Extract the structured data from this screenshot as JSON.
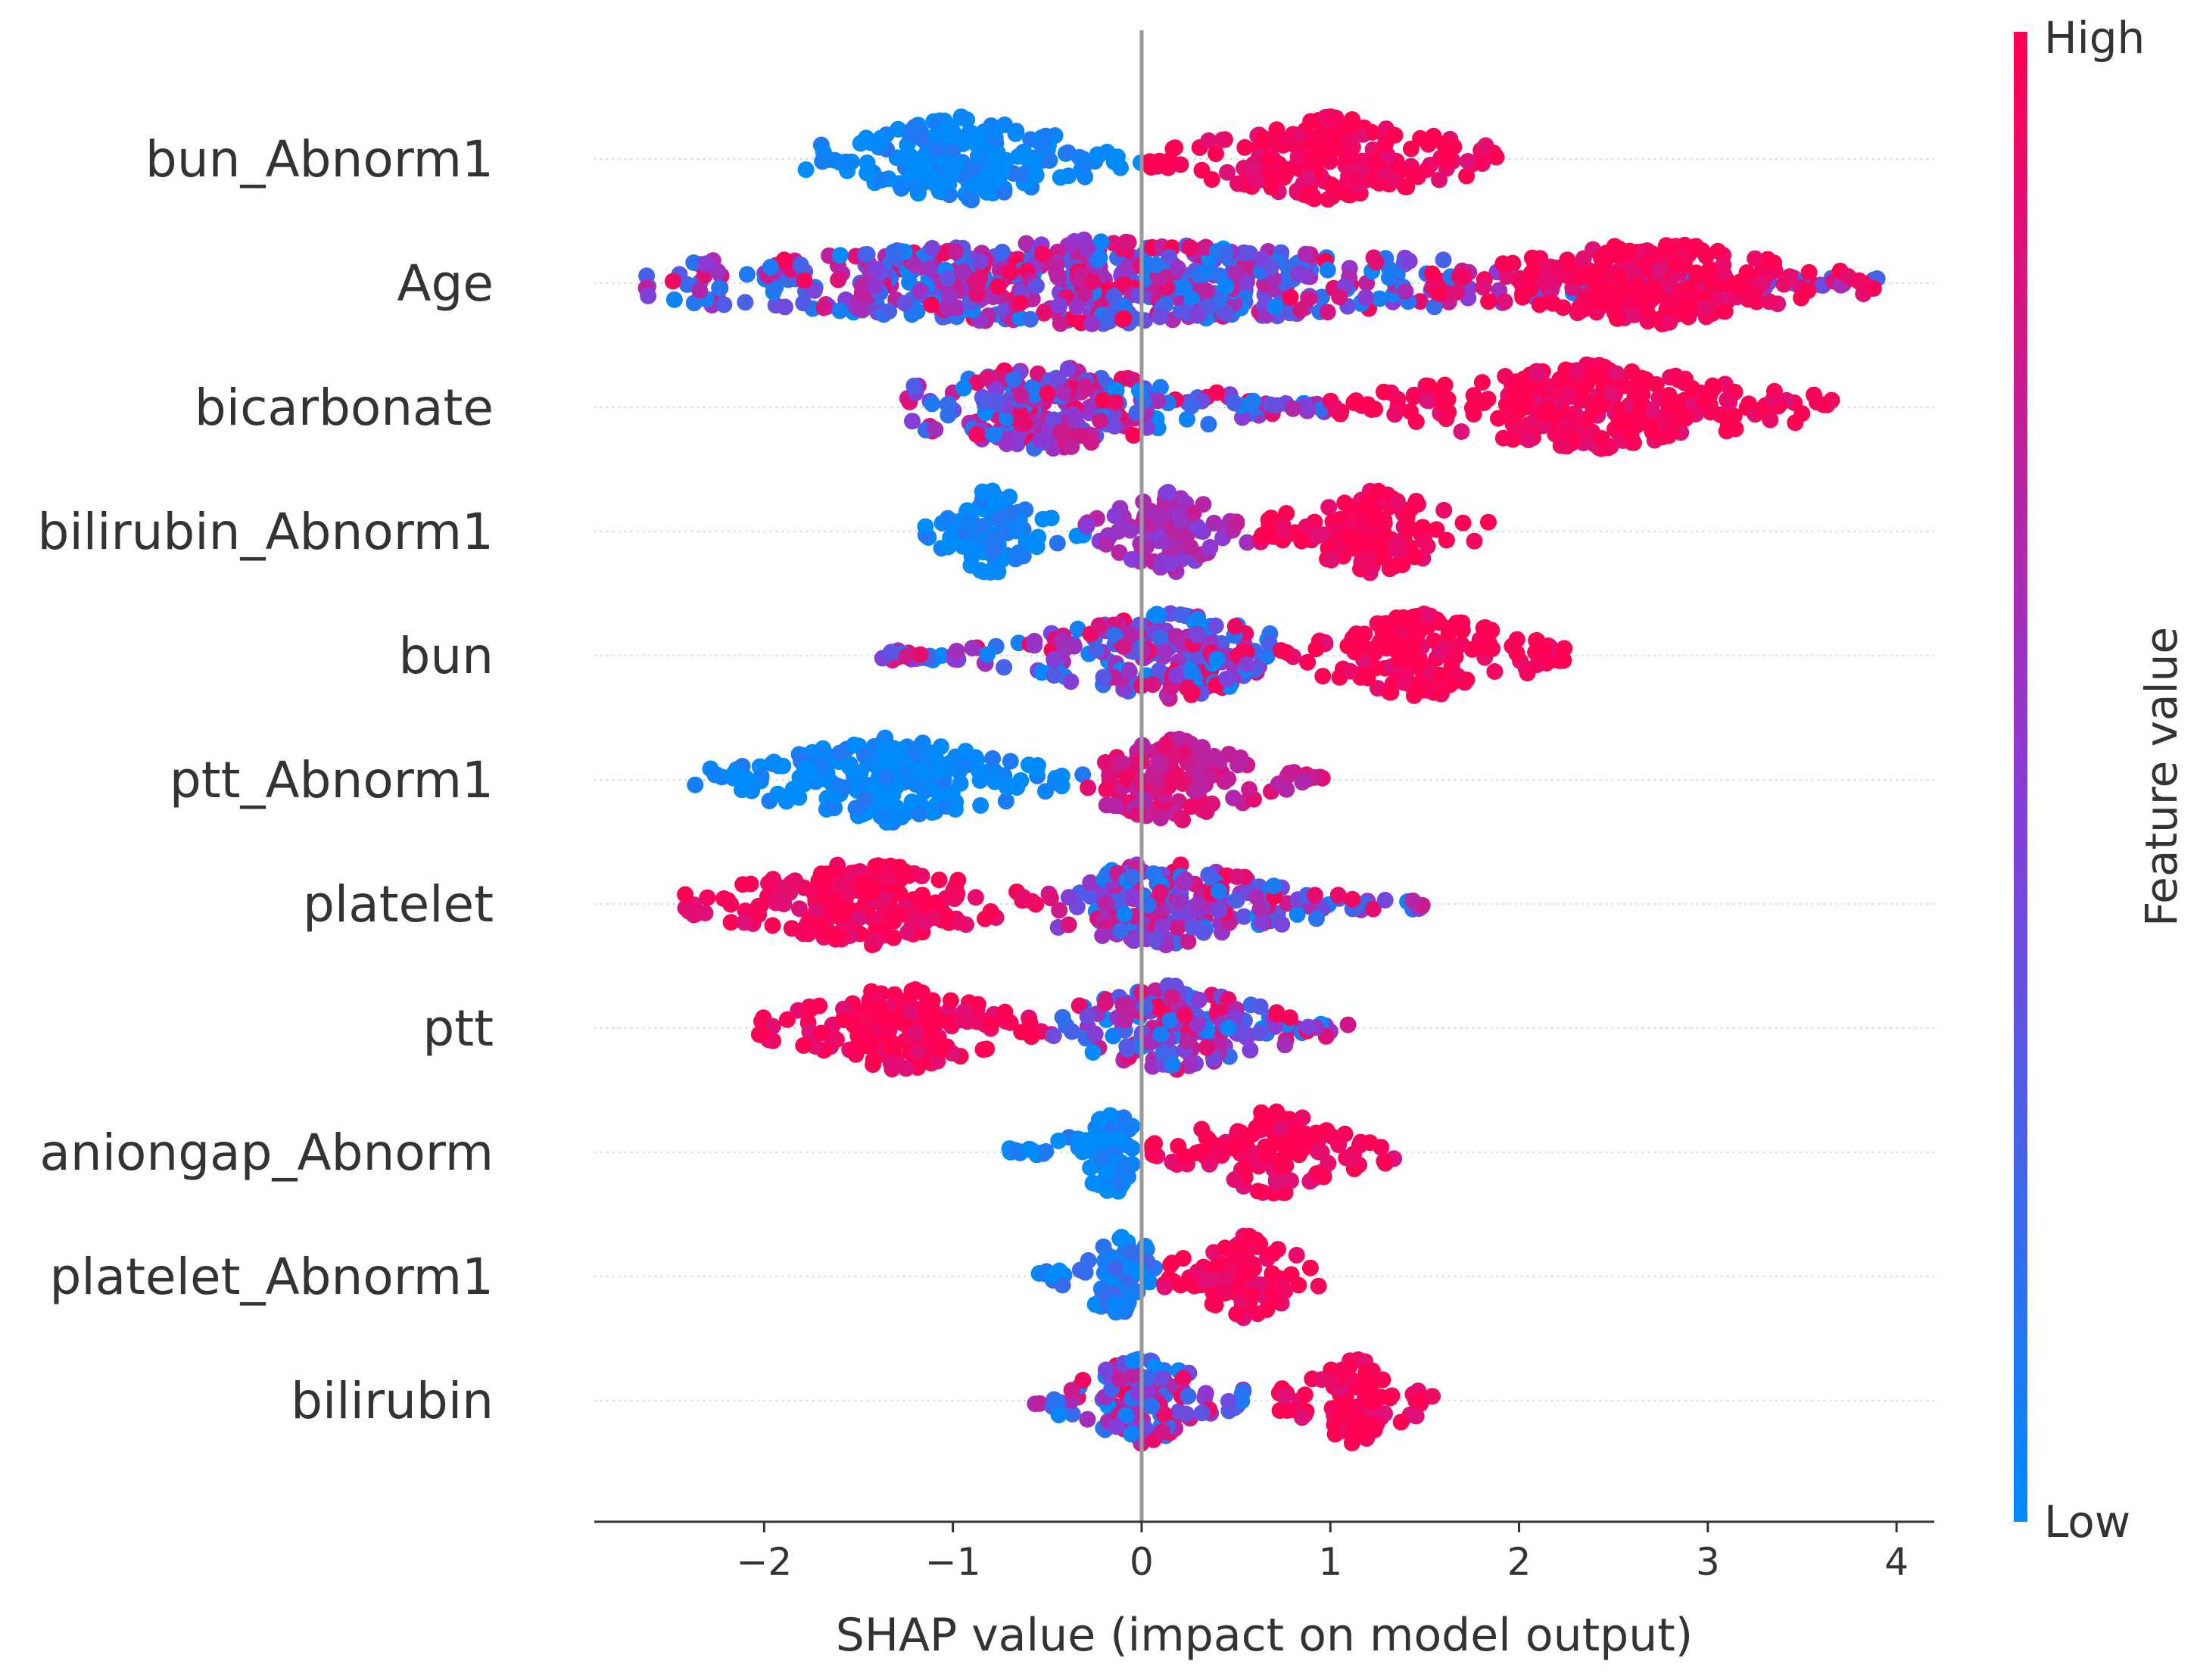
{
  "chart_data": {
    "type": "scatter",
    "subtype": "shap-beeswarm",
    "xlabel": "SHAP value (impact on model output)",
    "xlim": [
      -2.9,
      4.2
    ],
    "xticks": [
      -2,
      -1,
      0,
      1,
      2,
      3,
      4
    ],
    "xtick_labels": [
      "−2",
      "−1",
      "0",
      "1",
      "2",
      "3",
      "4"
    ],
    "features": [
      "bun_Abnorm1",
      "Age",
      "bicarbonate",
      "bilirubin_Abnorm1",
      "bun",
      "ptt_Abnorm1",
      "platelet",
      "ptt",
      "aniongap_Abnorm",
      "platelet_Abnorm1",
      "bilirubin"
    ],
    "zero_line": true,
    "grid": false,
    "colorbar": {
      "label": "Feature value",
      "high_label": "High",
      "low_label": "Low",
      "high_color": "#ff0052",
      "low_color": "#008bfb"
    },
    "feature_profiles": {
      "bun_Abnorm1": [
        {
          "from": -1.8,
          "to": 0.0,
          "value": 0.0,
          "peak": -0.95
        },
        {
          "from": 0.0,
          "to": 1.9,
          "value": 1.0,
          "peak": 1.0
        }
      ],
      "Age": [
        {
          "from": -2.65,
          "to": 3.9,
          "value": "mixed",
          "peak": -0.3
        },
        {
          "from": 1.5,
          "to": 3.9,
          "value": 1.0
        }
      ],
      "bicarbonate": [
        {
          "from": -1.25,
          "to": 1.0,
          "value": "mixed",
          "peak": -0.5
        },
        {
          "from": 1.0,
          "to": 3.75,
          "value": 1.0
        }
      ],
      "bilirubin_Abnorm1": [
        {
          "from": -1.15,
          "to": -0.3,
          "value": 0.0,
          "peak": -0.8
        },
        {
          "from": -0.3,
          "to": 0.6,
          "value": 0.6
        },
        {
          "from": 0.6,
          "to": 1.85,
          "value": 1.0
        }
      ],
      "bun": [
        {
          "from": -1.4,
          "to": 0.7,
          "value": "mixed",
          "peak": 0.15
        },
        {
          "from": 0.7,
          "to": 2.25,
          "value": 1.0
        }
      ],
      "ptt_Abnorm1": [
        {
          "from": -2.4,
          "to": -0.3,
          "value": 0.0
        },
        {
          "from": -0.3,
          "to": 1.0,
          "value": 0.8,
          "peak": 0.15
        }
      ],
      "platelet": [
        {
          "from": -2.45,
          "to": -0.5,
          "value": 1.0
        },
        {
          "from": -0.5,
          "to": 1.5,
          "value": "mixed",
          "peak": 0.1
        }
      ],
      "ptt": [
        {
          "from": -2.05,
          "to": -0.5,
          "value": 1.0
        },
        {
          "from": -0.5,
          "to": 1.15,
          "value": "mixed",
          "peak": 0.15
        }
      ],
      "aniongap_Abnorm": [
        {
          "from": -0.7,
          "to": -0.05,
          "value": 0.0,
          "peak": -0.15
        },
        {
          "from": 0.05,
          "to": 1.35,
          "value": 1.0
        }
      ],
      "platelet_Abnorm1": [
        {
          "from": -0.55,
          "to": 0.1,
          "value": 0.1,
          "peak": -0.1
        },
        {
          "from": 0.1,
          "to": 1.0,
          "value": 1.0
        }
      ],
      "bilirubin": [
        {
          "from": -0.6,
          "to": 0.55,
          "value": "mixed",
          "peak": 0.0
        },
        {
          "from": 0.7,
          "to": 1.55,
          "value": 1.0
        }
      ]
    }
  }
}
